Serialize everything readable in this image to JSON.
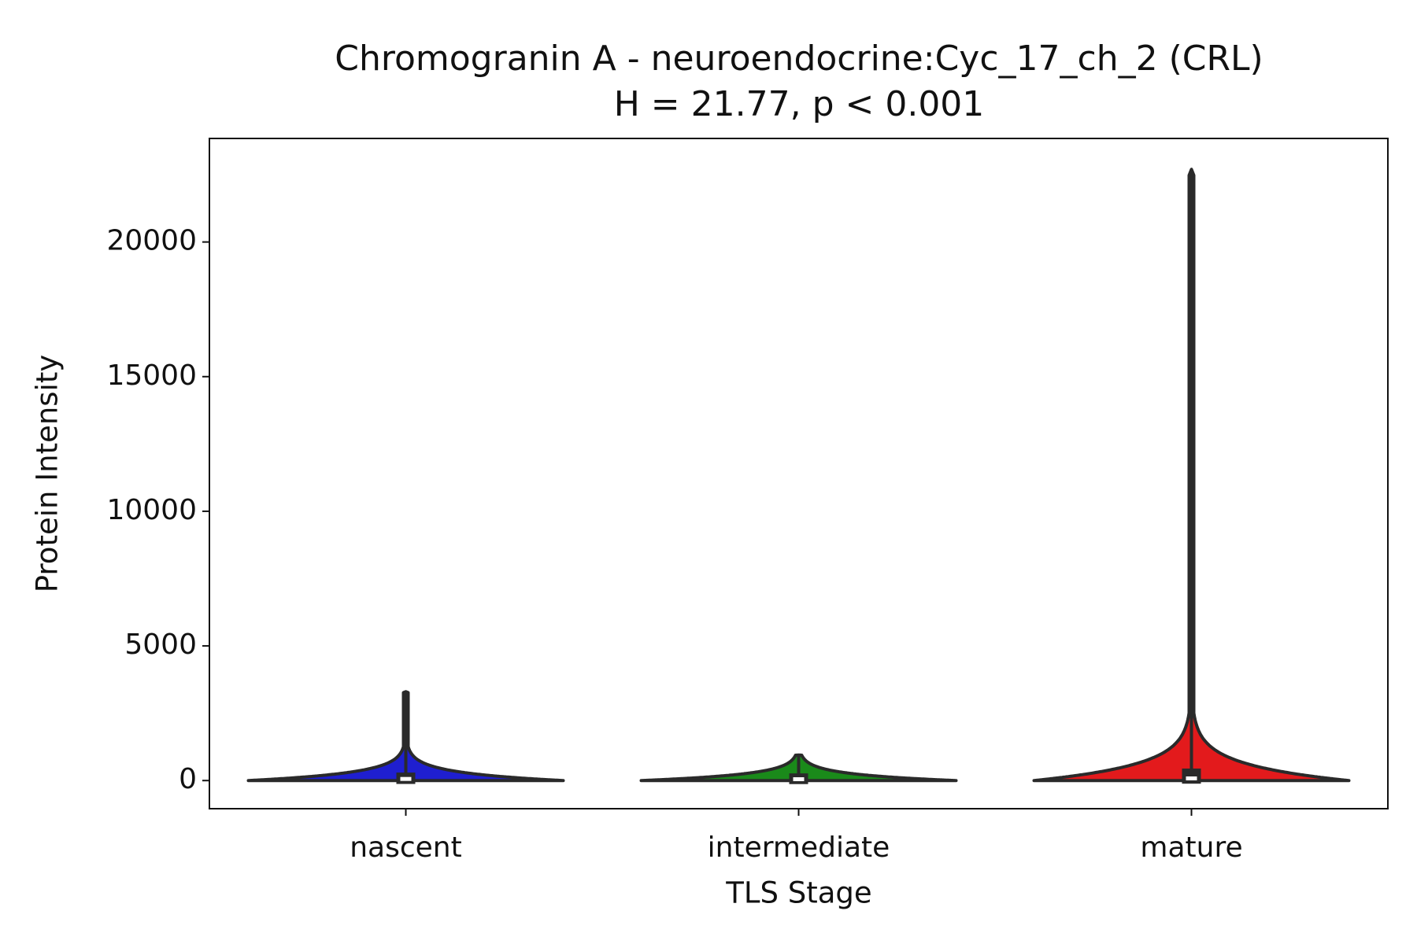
{
  "chart_data": {
    "type": "violin",
    "title": "Chromogranin A - neuroendocrine:Cyc_17_ch_2 (CRL)",
    "subtitle": "H = 21.77, p < 0.001",
    "xlabel": "TLS Stage",
    "ylabel": "Protein Intensity",
    "categories": [
      "nascent",
      "intermediate",
      "mature"
    ],
    "colors": [
      "#1f1fd0",
      "#1a8a1a",
      "#e31a1c"
    ],
    "stats": [
      {
        "min": 0,
        "q1": 20,
        "median": 60,
        "q3": 150,
        "max": 3300
      },
      {
        "min": 0,
        "q1": 15,
        "median": 50,
        "q3": 120,
        "max": 950
      },
      {
        "min": 0,
        "q1": 30,
        "median": 80,
        "q3": 300,
        "max": 22700
      }
    ],
    "ylim": [
      -1045,
      23845
    ],
    "yticks": [
      0,
      5000,
      10000,
      15000,
      20000
    ]
  }
}
